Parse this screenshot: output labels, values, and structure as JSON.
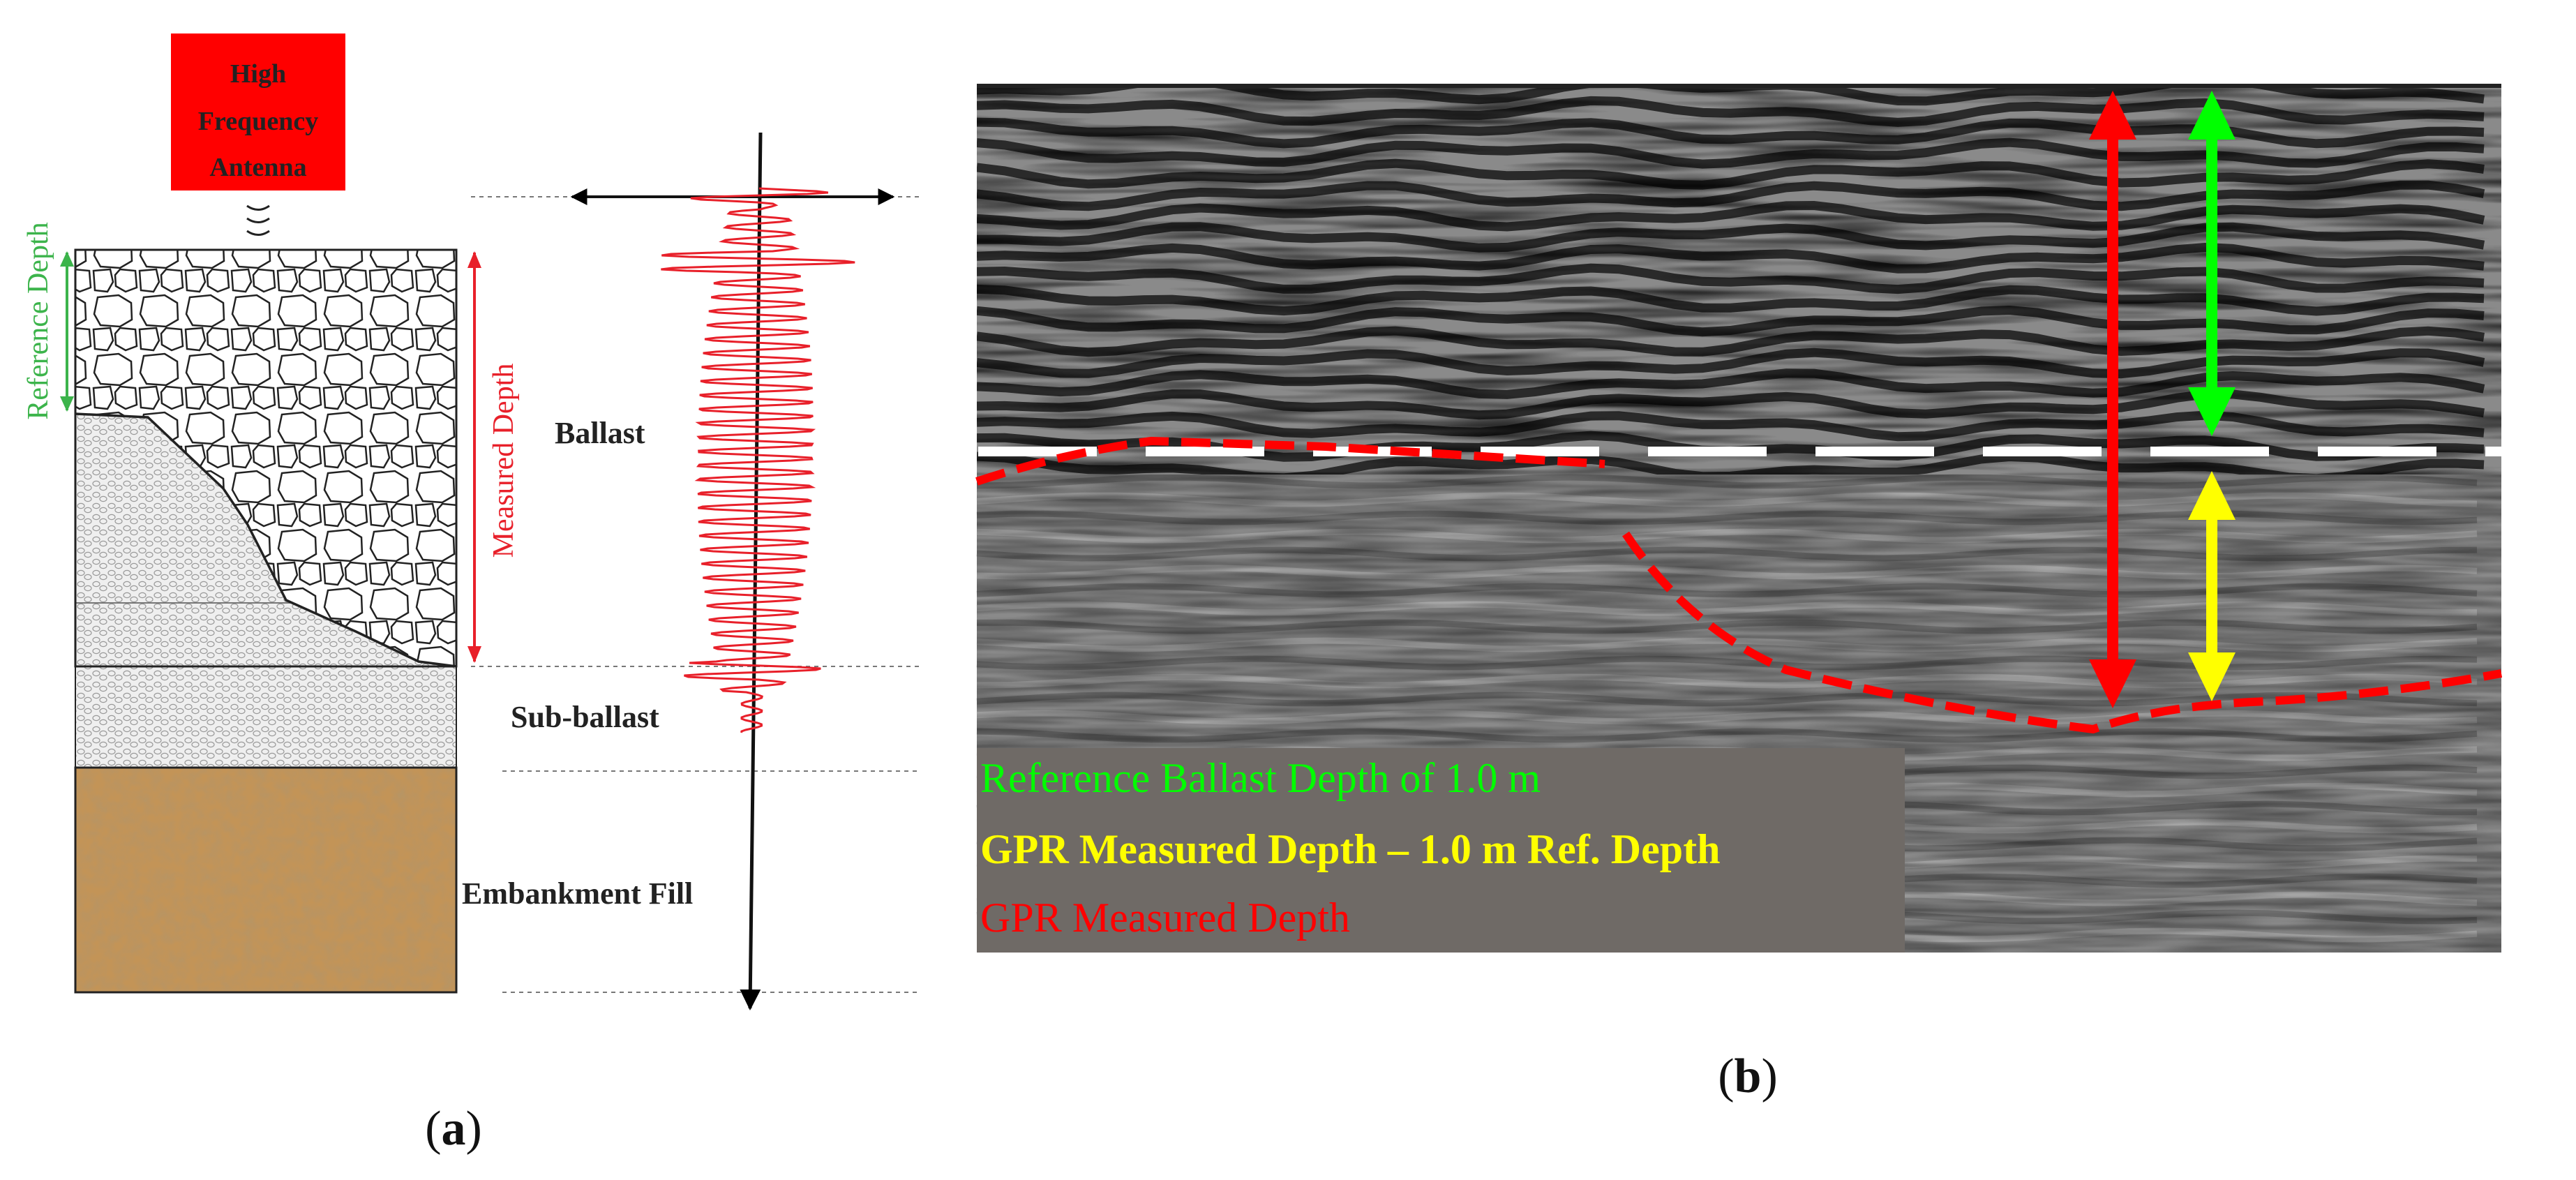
{
  "panel_a": {
    "antenna_label": [
      "High",
      "Frequency",
      "Antenna"
    ],
    "reference_depth_label": "Reference Depth",
    "measured_depth_label": "Measured Depth",
    "layers": {
      "ballast": "Ballast",
      "sub_ballast": "Sub-ballast",
      "embankment_fill": "Embankment Fill"
    },
    "caption_letter": "a",
    "caption_open": "(",
    "caption_close": ")"
  },
  "panel_b": {
    "legend": {
      "reference": "Reference Ballast Depth of 1.0 m",
      "difference": "GPR Measured Depth – 1.0 m Ref. Depth",
      "measured": "GPR Measured Depth"
    },
    "caption_letter": "b",
    "caption_open": "(",
    "caption_close": ")"
  },
  "colors": {
    "antenna_red": "#ff0000",
    "reference_green": "#00ff00",
    "difference_yellow": "#ffff00",
    "measured_red": "#ff0000",
    "measured_label_red": "#e8202a",
    "reference_label_green": "#3cb44b",
    "legend_bg": "#6f6a66",
    "embankment_sand": "#c39457"
  }
}
